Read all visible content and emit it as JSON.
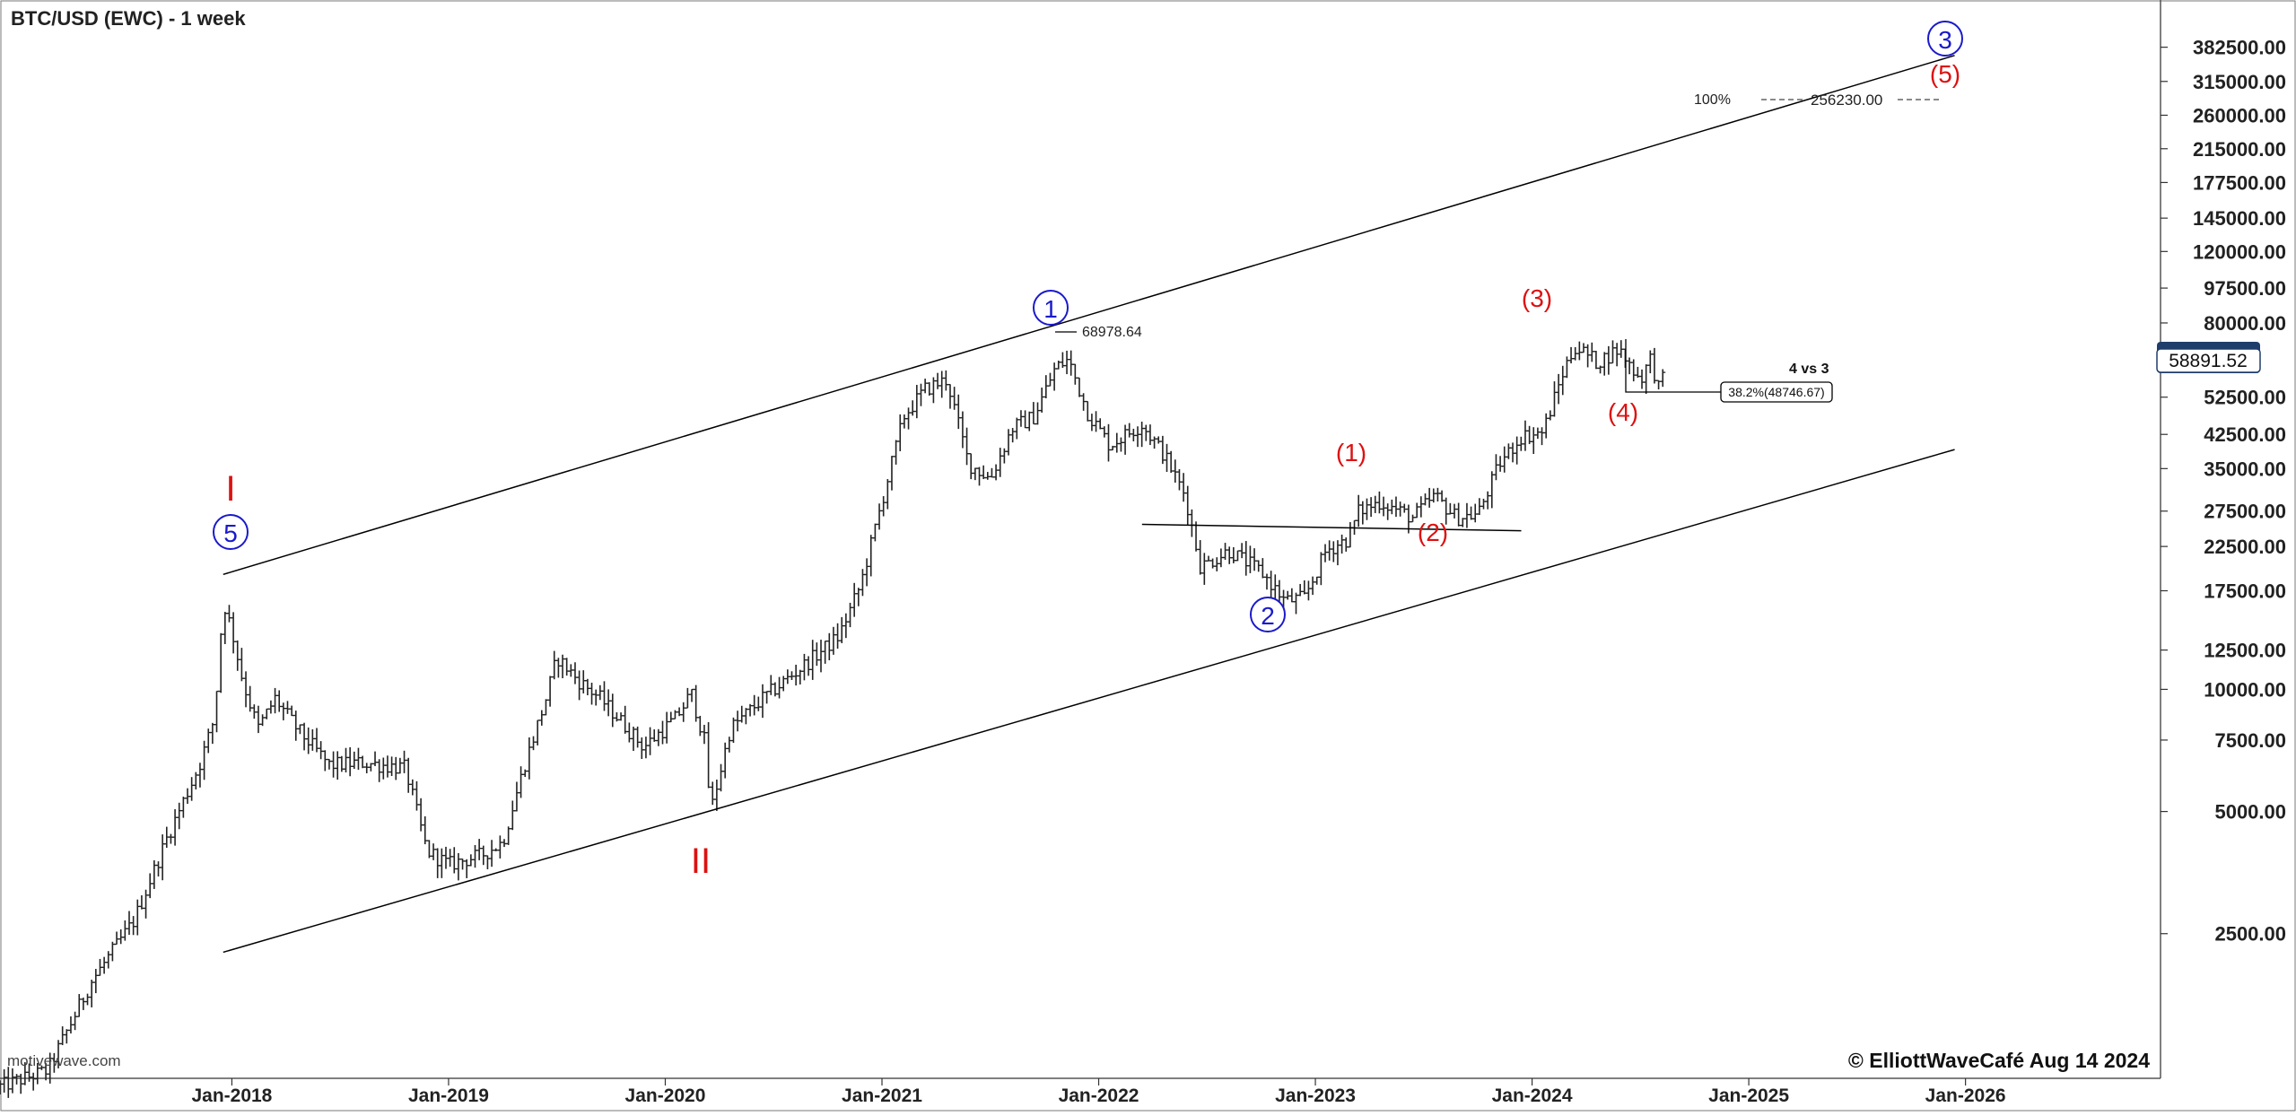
{
  "chart_title": "BTC/USD (EWC) - 1 week",
  "watermark": "motivewave.com",
  "copyright": "© ElliottWaveCafé Aug 14 2024",
  "current_price": "58891.52",
  "fib_target": {
    "pct": "100%",
    "value": "256230.00"
  },
  "fib_retracement": {
    "label": "38.2%(48746.67)",
    "title": "4 vs 3"
  },
  "high_label": "68978.64",
  "colors": {
    "red_label": "#dd1111",
    "blue_label": "#1a1acc",
    "bars": "#222222",
    "line": "#000000"
  },
  "chart_data": {
    "type": "ohlc",
    "scale": "log",
    "x_axis": {
      "tick_labels": [
        "Jan-2018",
        "Jan-2019",
        "Jan-2020",
        "Jan-2021",
        "Jan-2022",
        "Jan-2023",
        "Jan-2024",
        "Jan-2025",
        "Jan-2026"
      ],
      "tick_years": [
        2018,
        2019,
        2020,
        2021,
        2022,
        2023,
        2024,
        2025,
        2026
      ],
      "range": [
        2016.93,
        2026.9
      ]
    },
    "y_axis": {
      "tick_labels": [
        "382500.00",
        "315000.00",
        "260000.00",
        "215000.00",
        "177500.00",
        "145000.00",
        "120000.00",
        "97500.00",
        "80000.00",
        "52500.00",
        "42500.00",
        "35000.00",
        "27500.00",
        "22500.00",
        "17500.00",
        "12500.00",
        "10000.00",
        "7500.00",
        "5000.00",
        "2500.00"
      ],
      "tick_values": [
        382500,
        315000,
        260000,
        215000,
        177500,
        145000,
        120000,
        97500,
        80000,
        52500,
        42500,
        35000,
        27500,
        22500,
        17500,
        12500,
        10000,
        7500,
        5000,
        2500
      ],
      "range": [
        1100,
        500000
      ]
    },
    "price_path": [
      [
        2016.93,
        1050
      ],
      [
        2017.15,
        1150
      ],
      [
        2017.35,
        1900
      ],
      [
        2017.55,
        2700
      ],
      [
        2017.7,
        4300
      ],
      [
        2017.85,
        6500
      ],
      [
        2017.92,
        8500
      ],
      [
        2017.96,
        16500
      ],
      [
        2018.0,
        14000
      ],
      [
        2018.05,
        10500
      ],
      [
        2018.12,
        8000
      ],
      [
        2018.2,
        9500
      ],
      [
        2018.3,
        8000
      ],
      [
        2018.45,
        6500
      ],
      [
        2018.6,
        6600
      ],
      [
        2018.8,
        6400
      ],
      [
        2018.9,
        4000
      ],
      [
        2019.0,
        3700
      ],
      [
        2019.15,
        3900
      ],
      [
        2019.25,
        4200
      ],
      [
        2019.35,
        6500
      ],
      [
        2019.45,
        9500
      ],
      [
        2019.5,
        12000
      ],
      [
        2019.6,
        10500
      ],
      [
        2019.7,
        9500
      ],
      [
        2019.8,
        8300
      ],
      [
        2019.9,
        7200
      ],
      [
        2020.05,
        8500
      ],
      [
        2020.12,
        9800
      ],
      [
        2020.18,
        7500
      ],
      [
        2020.21,
        5000
      ],
      [
        2020.3,
        8000
      ],
      [
        2020.45,
        9500
      ],
      [
        2020.6,
        11000
      ],
      [
        2020.8,
        13500
      ],
      [
        2020.9,
        18000
      ],
      [
        2021.0,
        29000
      ],
      [
        2021.1,
        47000
      ],
      [
        2021.2,
        55000
      ],
      [
        2021.3,
        58000
      ],
      [
        2021.4,
        36000
      ],
      [
        2021.5,
        33000
      ],
      [
        2021.6,
        44000
      ],
      [
        2021.7,
        47000
      ],
      [
        2021.8,
        62000
      ],
      [
        2021.86,
        65000
      ],
      [
        2021.95,
        48000
      ],
      [
        2022.05,
        40000
      ],
      [
        2022.2,
        45000
      ],
      [
        2022.3,
        38000
      ],
      [
        2022.4,
        30000
      ],
      [
        2022.47,
        20000
      ],
      [
        2022.6,
        22000
      ],
      [
        2022.75,
        19500
      ],
      [
        2022.86,
        16500
      ],
      [
        2022.95,
        16800
      ],
      [
        2023.05,
        22000
      ],
      [
        2023.15,
        23500
      ],
      [
        2023.2,
        27500
      ],
      [
        2023.3,
        29000
      ],
      [
        2023.45,
        26500
      ],
      [
        2023.55,
        30000
      ],
      [
        2023.65,
        26500
      ],
      [
        2023.75,
        27000
      ],
      [
        2023.85,
        36000
      ],
      [
        2023.95,
        42000
      ],
      [
        2024.05,
        43000
      ],
      [
        2024.15,
        62000
      ],
      [
        2024.2,
        70000
      ],
      [
        2024.3,
        64000
      ],
      [
        2024.4,
        69000
      ],
      [
        2024.5,
        58000
      ],
      [
        2024.55,
        66000
      ],
      [
        2024.58,
        55000
      ],
      [
        2024.61,
        58891
      ]
    ],
    "trend_lines": [
      [
        [
          2017.96,
          19200
        ],
        [
          2025.95,
          365000
        ]
      ],
      [
        [
          2017.96,
          2250
        ],
        [
          2025.95,
          39000
        ]
      ],
      [
        [
          2022.2,
          25500
        ],
        [
          2023.95,
          24600
        ]
      ]
    ],
    "wave_labels": [
      {
        "text": "I",
        "color": "red",
        "style": "roman"
      },
      {
        "text": "II",
        "color": "red",
        "style": "roman"
      },
      {
        "text": "5",
        "color": "blue",
        "style": "circle"
      },
      {
        "text": "1",
        "color": "blue",
        "style": "circle"
      },
      {
        "text": "2",
        "color": "blue",
        "style": "circle"
      },
      {
        "text": "3",
        "color": "blue",
        "style": "circle"
      },
      {
        "text": "(1)",
        "color": "red",
        "style": "paren"
      },
      {
        "text": "(2)",
        "color": "red",
        "style": "paren"
      },
      {
        "text": "(3)",
        "color": "red",
        "style": "paren"
      },
      {
        "text": "(4)",
        "color": "red",
        "style": "paren"
      },
      {
        "text": "(5)",
        "color": "red",
        "style": "paren"
      }
    ]
  }
}
